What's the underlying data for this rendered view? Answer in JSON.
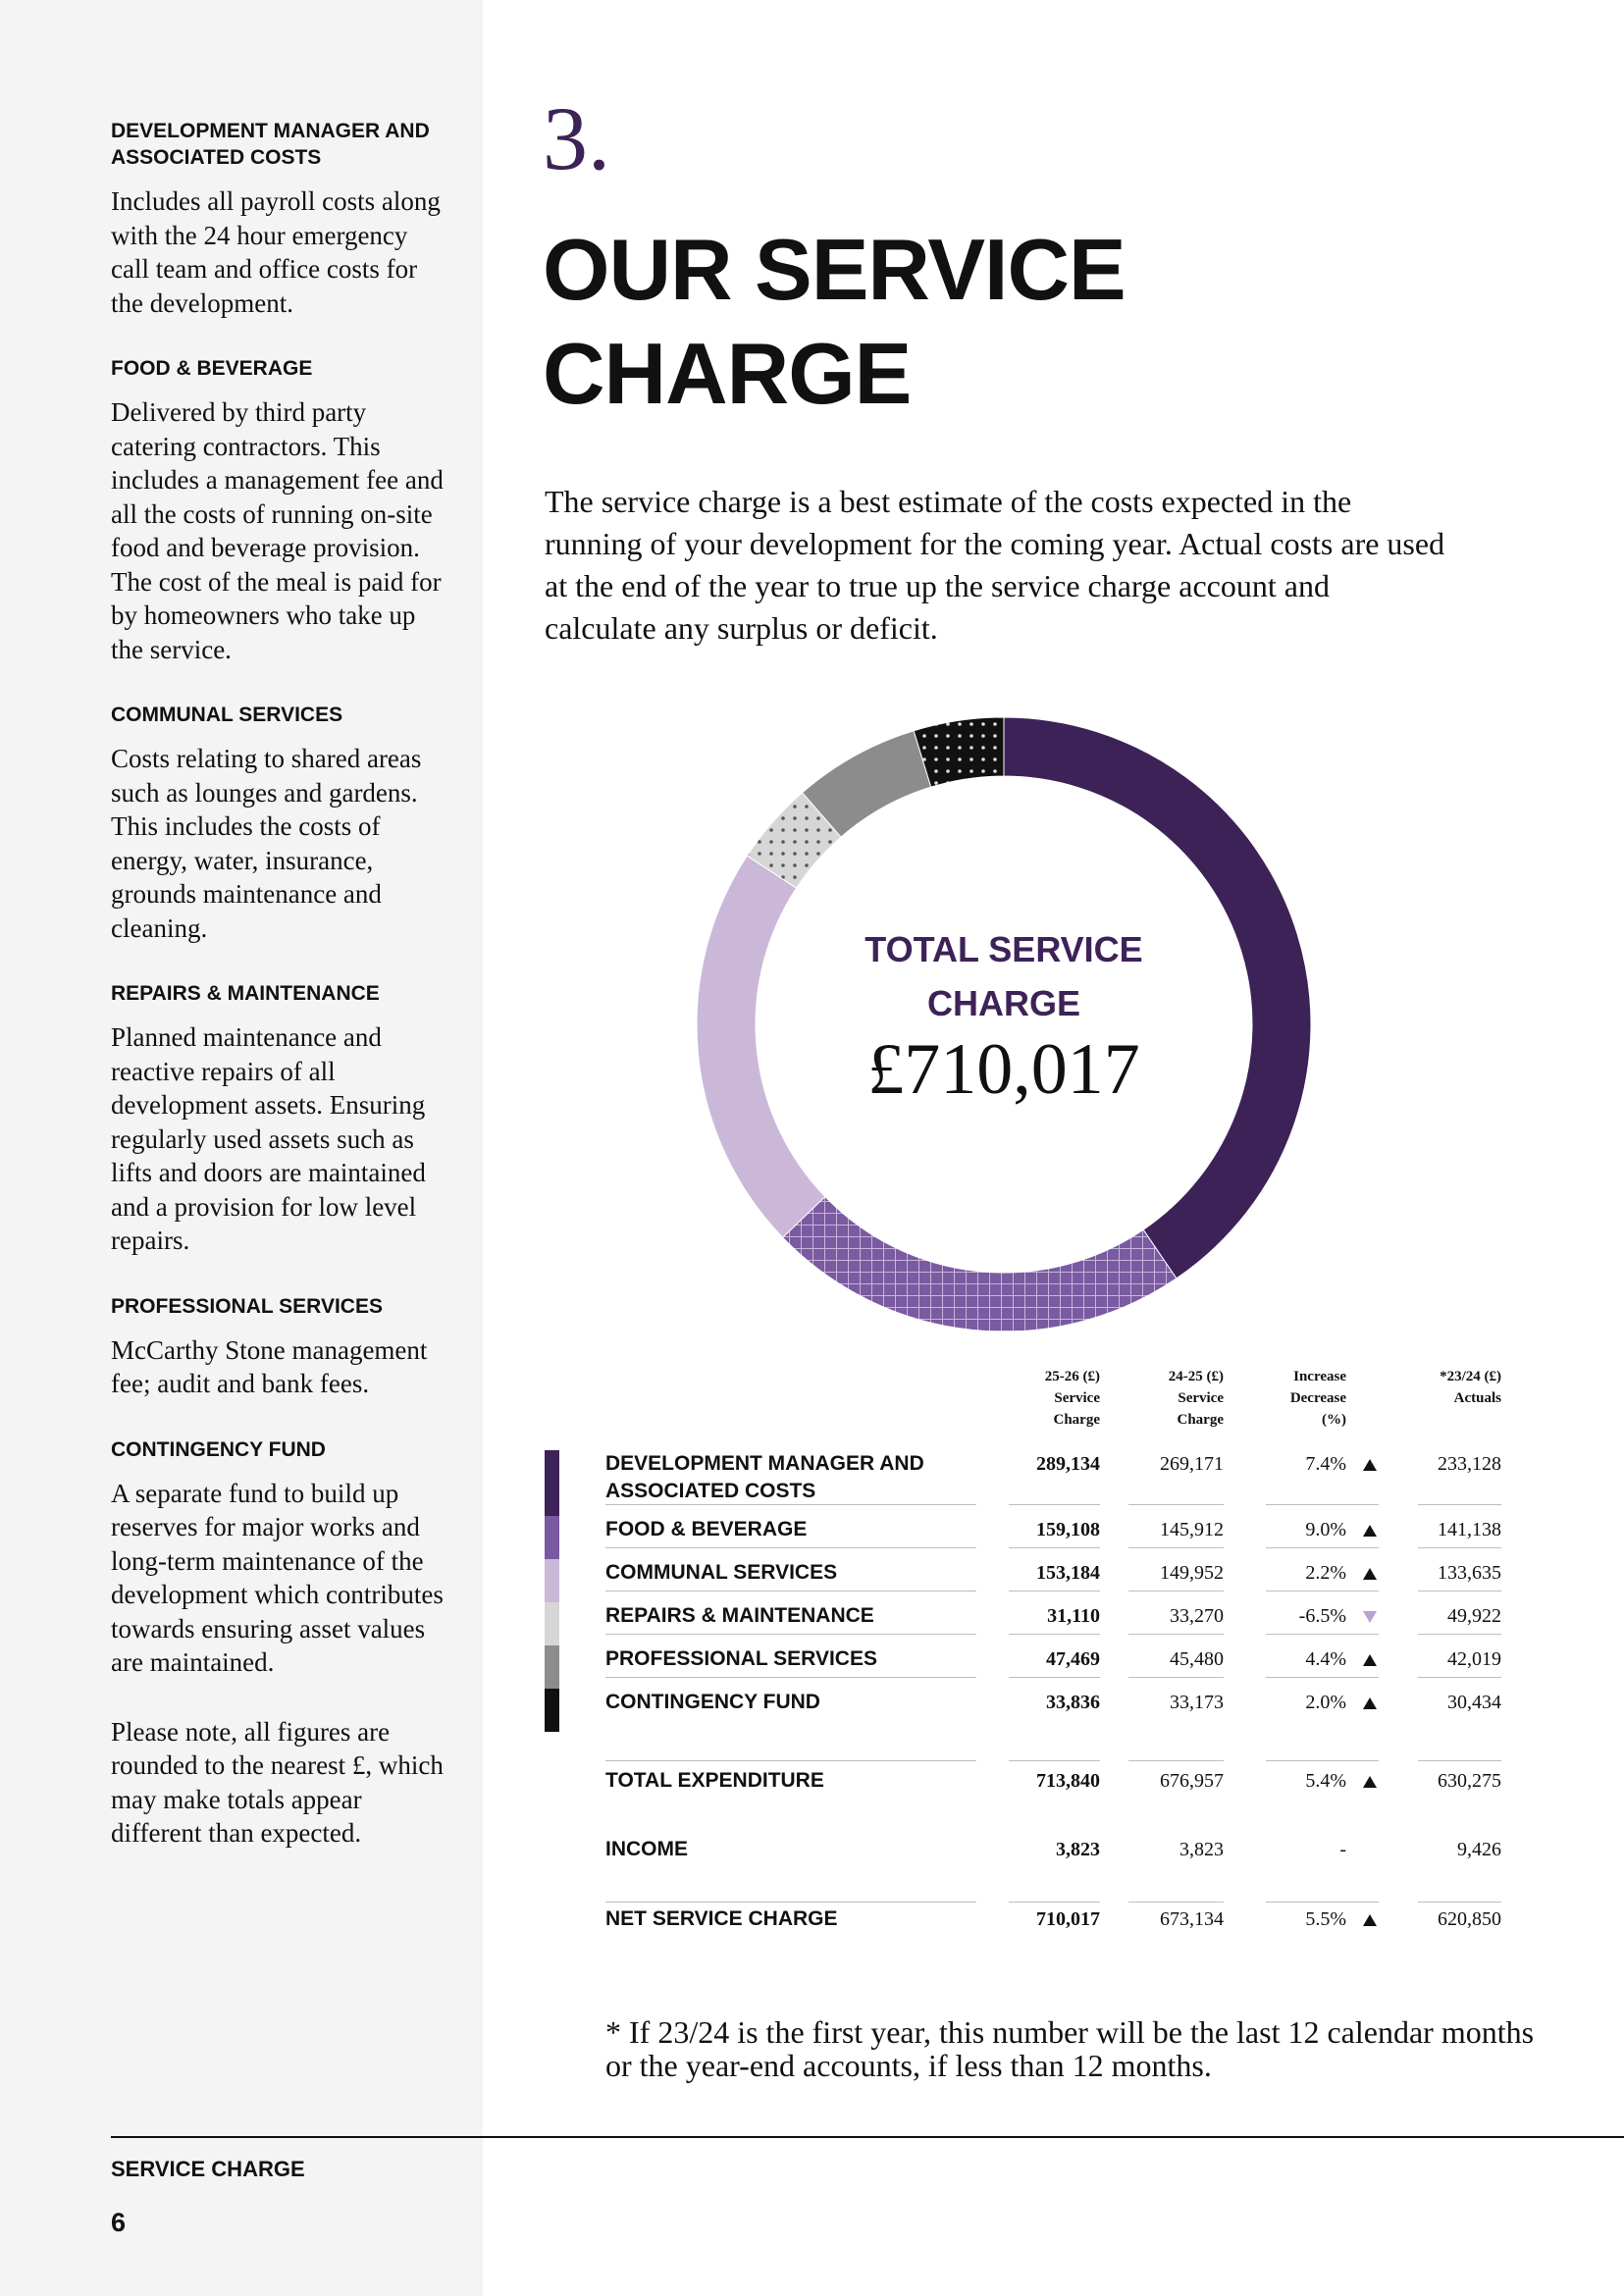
{
  "sidebar": {
    "sections": [
      "Includes all payroll costs along with the 24 hour emergency call team and office costs for the development.",
      "Delivered by third party catering contractors. This includes a management fee and all the costs of running on-site food and beverage provision. The cost of the meal is paid for by homeowners who take up the service.",
      "Costs relating to shared areas such as lounges and gardens. This includes the costs of energy, water, insurance, grounds maintenance and cleaning.",
      "Planned maintenance and reactive repairs of all development assets. Ensuring regularly used assets such as lifts and doors are maintained and a provision for low level repairs.",
      "McCarthy Stone management fee; audit and bank fees.",
      "A separate fund to build up reserves for major works and long-term maintenance of the development which contributes towards ensuring asset values are maintained."
    ],
    "note": "Please note, all figures are rounded to the nearest £, which may make totals appear different than expected.",
    "footer_label": "SERVICE CHARGE",
    "page_number": "6"
  },
  "section_number": "3.",
  "title": "OUR SERVICE CHARGE",
  "intro": "The service charge is a best estimate of the costs expected in the running of your development for the coming year. Actual costs are used at the end of the year to true up the service charge account and calculate any surplus or deficit.",
  "chart_data": {
    "type": "donut",
    "center_title": "TOTAL SERVICE CHARGE",
    "center_value": "£710,017",
    "categories": [
      "DEVELOPMENT MANAGER AND ASSOCIATED COSTS",
      "FOOD & BEVERAGE",
      "COMMUNAL SERVICES",
      "REPAIRS & MAINTENANCE",
      "PROFESSIONAL SERVICES",
      "CONTINGENCY FUND"
    ],
    "values": [
      289134,
      159108,
      153184,
      31110,
      47469,
      33836
    ],
    "value_labels": [
      "289,134",
      "159,108",
      "153,184",
      "31,110",
      "47,469",
      "33,836"
    ],
    "colors": [
      "#3d2257",
      "#7a5aa0",
      "#cbb8d9",
      "#d6d6d6",
      "#8c8c8c",
      "#111111"
    ],
    "patterns": [
      "solid",
      "crosshatch",
      "solid",
      "dots",
      "solid",
      "dots"
    ]
  },
  "table": {
    "headers": [
      "25-26 (£)\nService\nCharge",
      "24-25 (£)\nService\nCharge",
      "Increase\nDecrease\n(%)",
      "*23/24 (£)\nActuals"
    ],
    "rows": [
      {
        "prior": "269,171",
        "change": "7.4%",
        "trend": "up",
        "actual": "233,128"
      },
      {
        "prior": "145,912",
        "change": "9.0%",
        "trend": "up",
        "actual": "141,138"
      },
      {
        "prior": "149,952",
        "change": "2.2%",
        "trend": "up",
        "actual": "133,635"
      },
      {
        "prior": "33,270",
        "change": "-6.5%",
        "trend": "down",
        "actual": "49,922"
      },
      {
        "prior": "45,480",
        "change": "4.4%",
        "trend": "up",
        "actual": "42,019"
      },
      {
        "prior": "33,173",
        "change": "2.0%",
        "trend": "up",
        "actual": "30,434"
      }
    ],
    "totals": [
      {
        "label": "TOTAL EXPENDITURE",
        "current": "713,840",
        "prior": "676,957",
        "change": "5.4%",
        "trend": "up",
        "actual": "630,275"
      },
      {
        "label": "INCOME",
        "current": "3,823",
        "prior": "3,823",
        "change": "-",
        "trend": null,
        "actual": "9,426"
      },
      {
        "label": "NET SERVICE CHARGE",
        "current": "710,017",
        "prior": "673,134",
        "change": "5.5%",
        "trend": "up",
        "actual": "620,850"
      }
    ]
  },
  "footnote": "* If 23/24 is the first year, this number will be the last 12 calendar months or the year-end accounts, if less than 12 months."
}
